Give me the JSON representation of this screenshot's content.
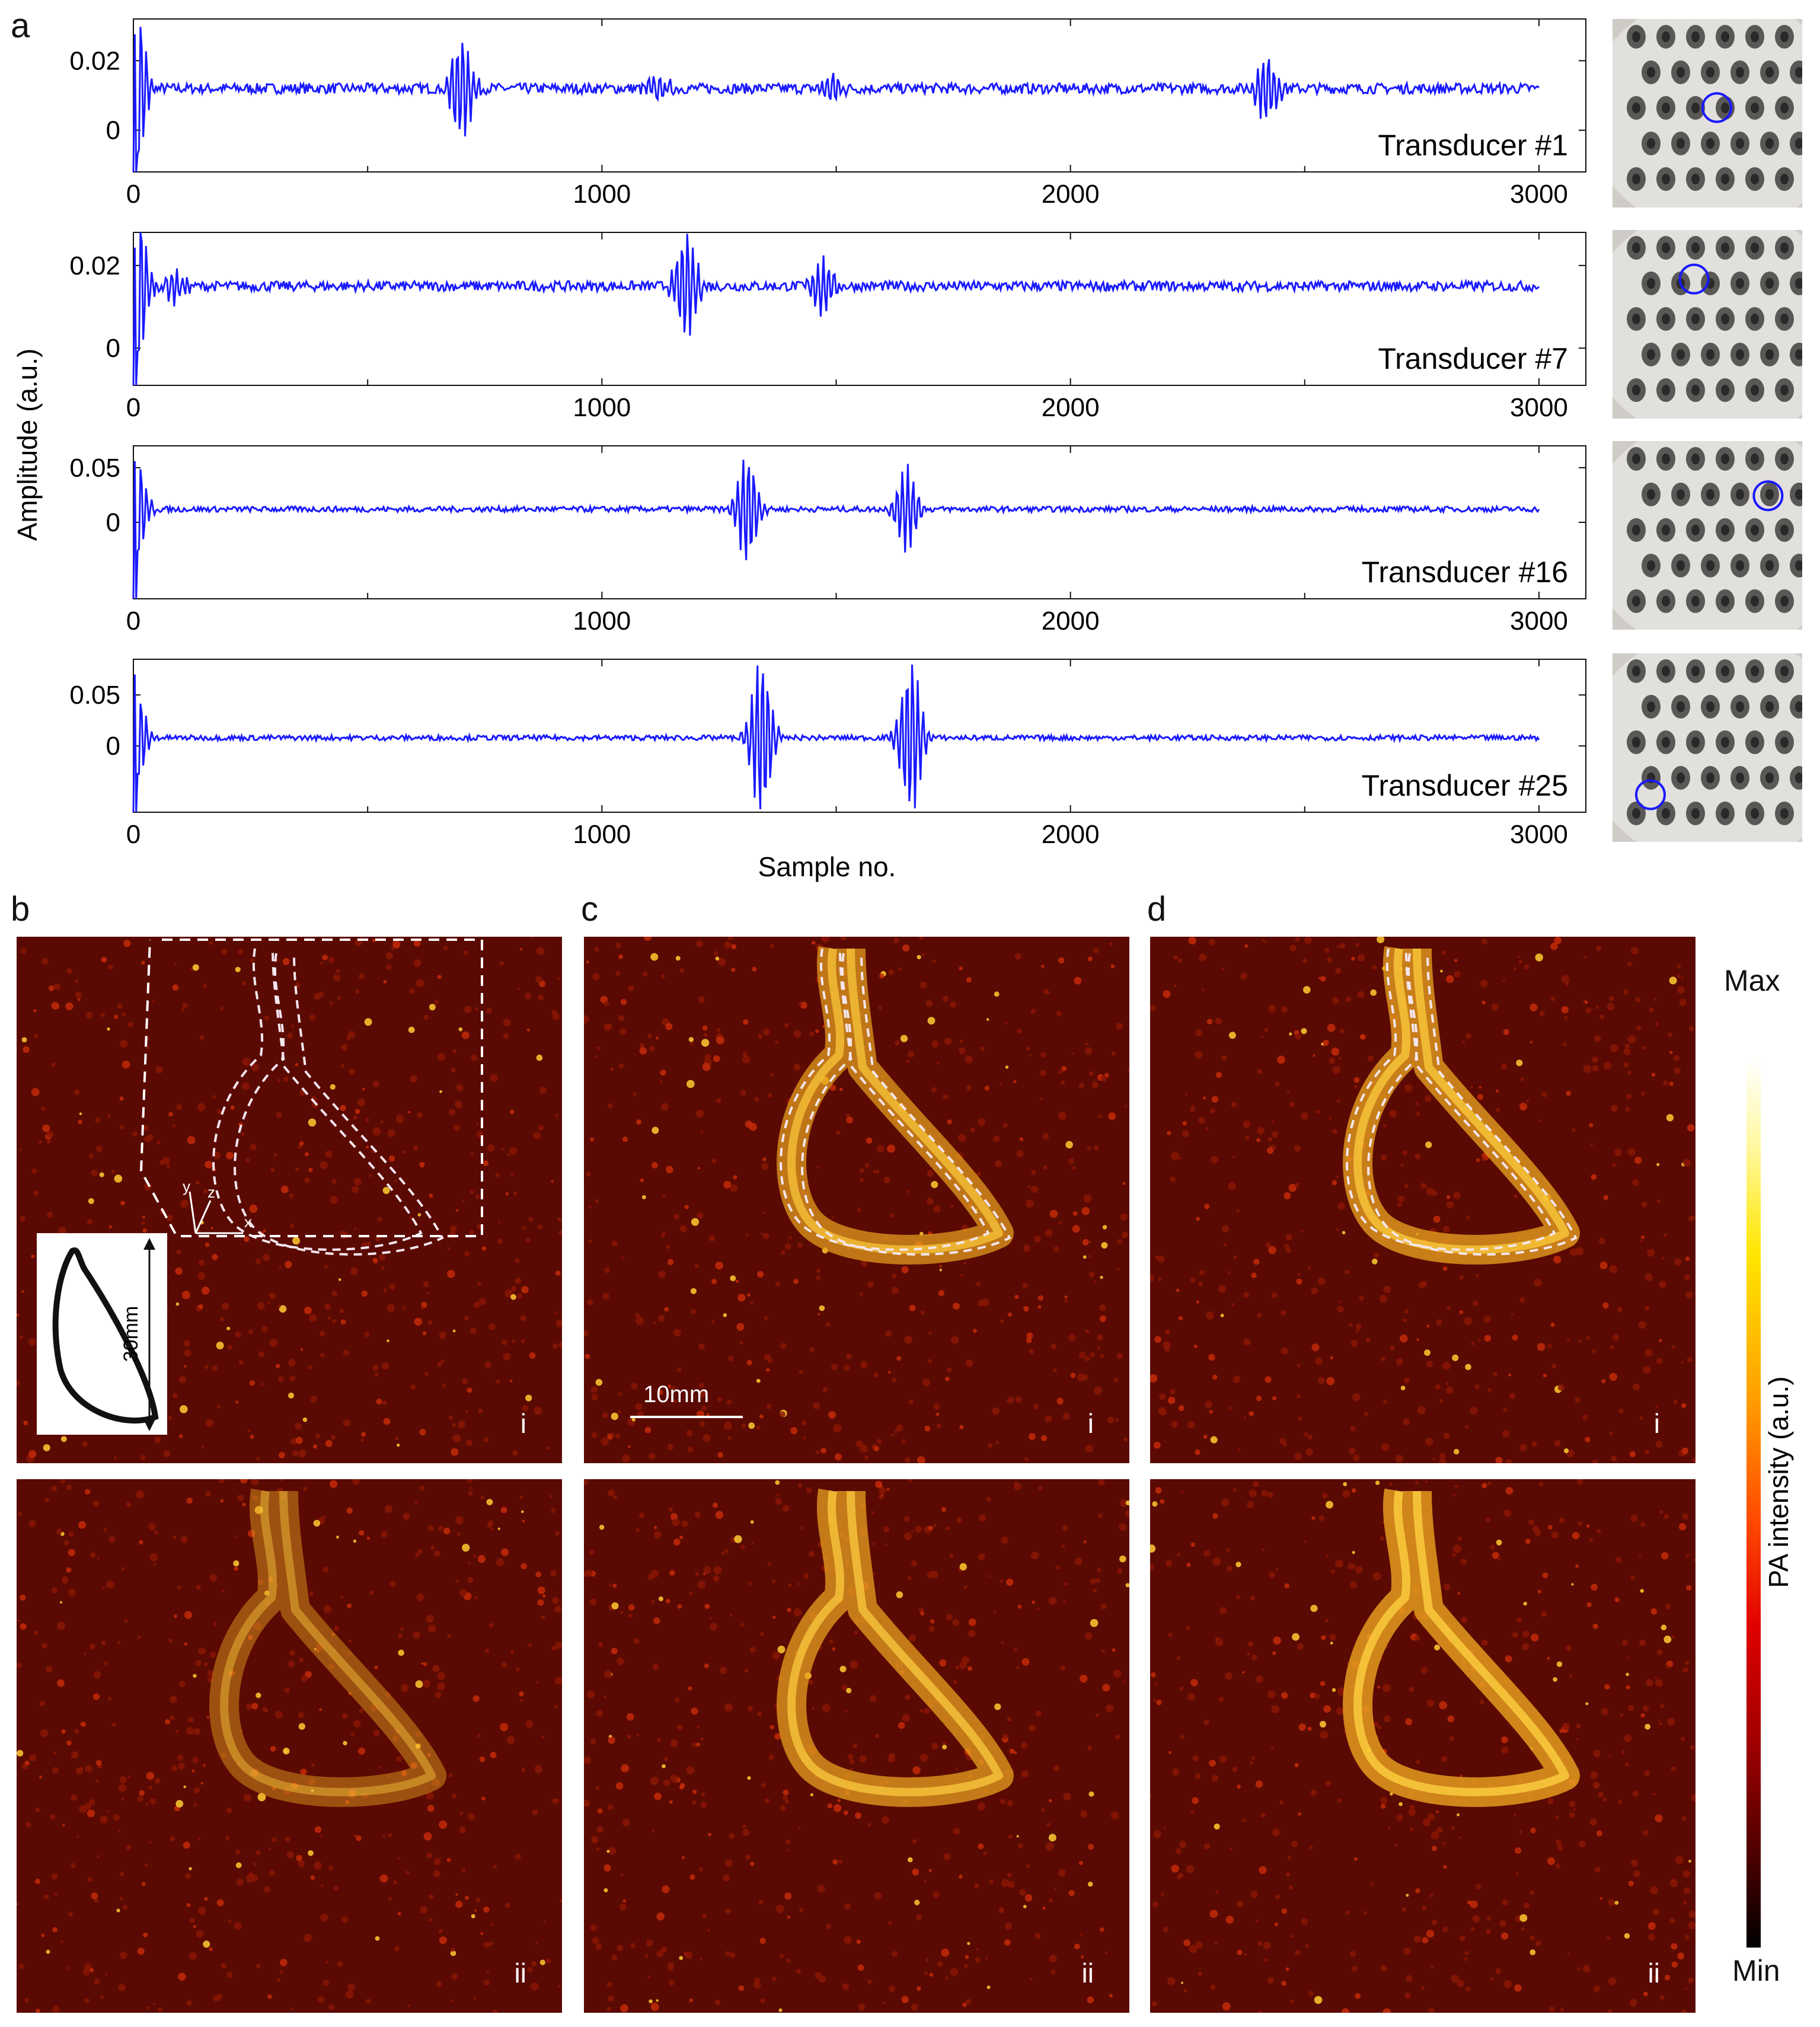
{
  "panels": {
    "a": "a",
    "b": "b",
    "c": "c",
    "d": "d"
  },
  "signals": {
    "ylabel": "Amplitude (a.u.)",
    "xlabel": "Sample no.",
    "line_color": "#1a1aff"
  },
  "chart_data": [
    {
      "type": "line",
      "name": "Transducer #1",
      "xlim": [
        0,
        3100
      ],
      "ylim": [
        -0.012,
        0.032
      ],
      "yticks": [
        {
          "v": 0,
          "label": "0"
        },
        {
          "v": 0.02,
          "label": "0.02"
        }
      ],
      "xticks": [
        {
          "v": 0,
          "label": "0"
        },
        {
          "v": 1000,
          "label": "1000"
        },
        {
          "v": 2000,
          "label": "2000"
        },
        {
          "v": 3000,
          "label": "3000"
        }
      ],
      "baseline": 0.012,
      "noise": 0.0015,
      "events": [
        {
          "x": 2,
          "amp": 0.03
        },
        {
          "x": 700,
          "amp": 0.016
        },
        {
          "x": 1120,
          "amp": 0.004
        },
        {
          "x": 1490,
          "amp": 0.004
        },
        {
          "x": 2420,
          "amp": 0.01
        }
      ]
    },
    {
      "type": "line",
      "name": "Transducer #7",
      "xlim": [
        0,
        3100
      ],
      "ylim": [
        -0.009,
        0.028
      ],
      "yticks": [
        {
          "v": 0,
          "label": "0"
        },
        {
          "v": 0.02,
          "label": "0.02"
        }
      ],
      "xticks": [
        {
          "v": 0,
          "label": "0"
        },
        {
          "v": 1000,
          "label": "1000"
        },
        {
          "v": 2000,
          "label": "2000"
        },
        {
          "v": 3000,
          "label": "3000"
        }
      ],
      "baseline": 0.015,
      "noise": 0.0012,
      "events": [
        {
          "x": 2,
          "amp": 0.025
        },
        {
          "x": 90,
          "amp": 0.004
        },
        {
          "x": 1180,
          "amp": 0.013
        },
        {
          "x": 1470,
          "amp": 0.007
        }
      ]
    },
    {
      "type": "line",
      "name": "Transducer #16",
      "xlim": [
        0,
        3100
      ],
      "ylim": [
        -0.07,
        0.07
      ],
      "yticks": [
        {
          "v": 0,
          "label": "0"
        },
        {
          "v": 0.05,
          "label": "0.05"
        }
      ],
      "xticks": [
        {
          "v": 0,
          "label": "0"
        },
        {
          "v": 1000,
          "label": "1000"
        },
        {
          "v": 2000,
          "label": "2000"
        },
        {
          "v": 3000,
          "label": "3000"
        }
      ],
      "baseline": 0.012,
      "noise": 0.0025,
      "events": [
        {
          "x": 2,
          "amp": 0.06
        },
        {
          "x": 1310,
          "amp": 0.05
        },
        {
          "x": 1650,
          "amp": 0.04
        }
      ]
    },
    {
      "type": "line",
      "name": "Transducer #25",
      "xlim": [
        0,
        3100
      ],
      "ylim": [
        -0.065,
        0.085
      ],
      "yticks": [
        {
          "v": 0,
          "label": "0"
        },
        {
          "v": 0.05,
          "label": "0.05"
        }
      ],
      "xticks": [
        {
          "v": 0,
          "label": "0"
        },
        {
          "v": 1000,
          "label": "1000"
        },
        {
          "v": 2000,
          "label": "2000"
        },
        {
          "v": 3000,
          "label": "3000"
        }
      ],
      "baseline": 0.008,
      "noise": 0.0025,
      "events": [
        {
          "x": 2,
          "amp": 0.06
        },
        {
          "x": 1340,
          "amp": 0.08
        },
        {
          "x": 1660,
          "amp": 0.08
        }
      ]
    }
  ],
  "images": {
    "b_top_label": "i",
    "b_bottom_label": "ii",
    "c_top_label": "i",
    "c_bottom_label": "ii",
    "d_top_label": "i",
    "d_bottom_label": "ii",
    "scale_bar": "10mm",
    "inset_size": "30mm",
    "axis_x": "x",
    "axis_y": "y",
    "axis_z": "z"
  },
  "colorbar": {
    "max_label": "Max",
    "min_label": "Min",
    "title": "PA intensity (a.u.)"
  }
}
